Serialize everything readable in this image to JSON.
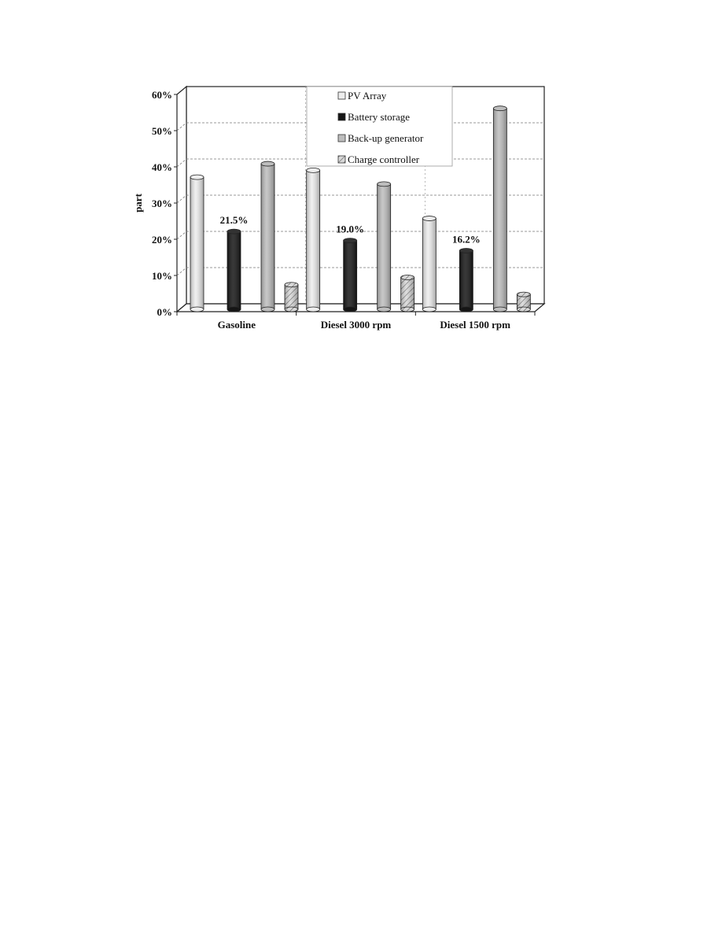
{
  "chart_data": {
    "type": "bar",
    "title": "",
    "xlabel": "",
    "ylabel": "part",
    "ylim": [
      0,
      60
    ],
    "yticks": [
      "0%",
      "10%",
      "20%",
      "30%",
      "40%",
      "50%",
      "60%"
    ],
    "grid": true,
    "legend_position": "top-center",
    "categories": [
      "Gasoline",
      "Diesel 3000 rpm",
      "Diesel 1500 rpm"
    ],
    "series": [
      {
        "name": "PV Array",
        "values": [
          36.5,
          38.4,
          25.1
        ],
        "color": "#ededed",
        "pattern": "none"
      },
      {
        "name": "Battery storage",
        "values": [
          21.5,
          19.0,
          16.2
        ],
        "color": "#151515",
        "pattern": "none"
      },
      {
        "name": "Back-up generator",
        "values": [
          40.2,
          34.6,
          55.5
        ],
        "color": "#bdbdbd",
        "pattern": "none"
      },
      {
        "name": "Charge controller",
        "values": [
          6.8,
          8.8,
          4.1
        ],
        "color": "#d0d0d0",
        "pattern": "hatch"
      }
    ],
    "data_labels": [
      {
        "category": "Gasoline",
        "series": "Battery storage",
        "text": "21.5%"
      },
      {
        "category": "Diesel 3000 rpm",
        "series": "Battery storage",
        "text": "19.0%"
      },
      {
        "category": "Diesel 1500 rpm",
        "series": "Battery storage",
        "text": "16.2%"
      }
    ]
  }
}
